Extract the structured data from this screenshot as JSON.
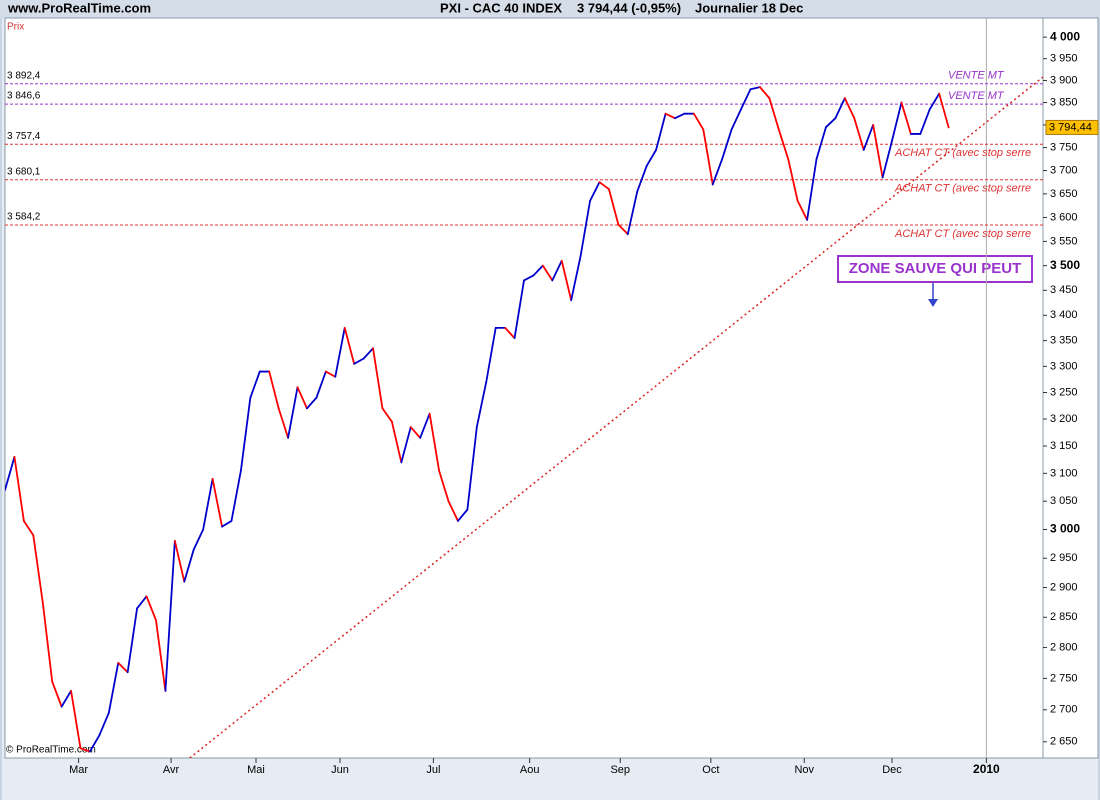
{
  "header": {
    "site": "www.ProRealTime.com",
    "instrument": "PXI - CAC 40 INDEX",
    "quote": "3 794,44 (-0,95%)",
    "period": "Journalier  18 Dec"
  },
  "chart_data": {
    "type": "line",
    "y_axis_title": "Prix",
    "copyright": "© ProRealTime.com",
    "log_scale": true,
    "grid": false,
    "up_color": "#0000cc",
    "down_color": "#ff0000",
    "xlim": [
      0,
      110
    ],
    "xticks": [
      {
        "value": 7.8,
        "label": "Mar"
      },
      {
        "value": 17.6,
        "label": "Avr"
      },
      {
        "value": 26.6,
        "label": "Mai"
      },
      {
        "value": 35.5,
        "label": "Jun"
      },
      {
        "value": 45.4,
        "label": "Jul"
      },
      {
        "value": 55.6,
        "label": "Aou"
      },
      {
        "value": 65.2,
        "label": "Sep"
      },
      {
        "value": 74.8,
        "label": "Oct"
      },
      {
        "value": 84.7,
        "label": "Nov"
      },
      {
        "value": 94.0,
        "label": "Dec"
      },
      {
        "value": 104.0,
        "label": "2010"
      }
    ],
    "ylim": [
      2625,
      4045
    ],
    "yticks": [
      {
        "value": 2650,
        "label": "2 650"
      },
      {
        "value": 2700,
        "label": "2 700"
      },
      {
        "value": 2750,
        "label": "2 750"
      },
      {
        "value": 2800,
        "label": "2 800"
      },
      {
        "value": 2850,
        "label": "2 850"
      },
      {
        "value": 2900,
        "label": "2 900"
      },
      {
        "value": 2950,
        "label": "2 950"
      },
      {
        "value": 3000,
        "label": "3 000"
      },
      {
        "value": 3050,
        "label": "3 050"
      },
      {
        "value": 3100,
        "label": "3 100"
      },
      {
        "value": 3150,
        "label": "3 150"
      },
      {
        "value": 3200,
        "label": "3 200"
      },
      {
        "value": 3250,
        "label": "3 250"
      },
      {
        "value": 3300,
        "label": "3 300"
      },
      {
        "value": 3350,
        "label": "3 350"
      },
      {
        "value": 3400,
        "label": "3 400"
      },
      {
        "value": 3450,
        "label": "3 450"
      },
      {
        "value": 3500,
        "label": "3 500"
      },
      {
        "value": 3550,
        "label": "3 550"
      },
      {
        "value": 3600,
        "label": "3 600"
      },
      {
        "value": 3650,
        "label": "3 650"
      },
      {
        "value": 3700,
        "label": "3 700"
      },
      {
        "value": 3750,
        "label": "3 750"
      },
      {
        "value": 3800,
        "label": "3 800"
      },
      {
        "value": 3850,
        "label": "3 850"
      },
      {
        "value": 3900,
        "label": "3 900"
      },
      {
        "value": 3950,
        "label": "3 950"
      },
      {
        "value": 4000,
        "label": "4 000"
      }
    ],
    "series": [
      {
        "name": "CAC 40",
        "values": [
          3070,
          3130,
          3015,
          2990,
          2875,
          2745,
          2705,
          2730,
          2640,
          2635,
          2660,
          2695,
          2775,
          2760,
          2865,
          2885,
          2845,
          2730,
          2980,
          2910,
          2965,
          3000,
          3090,
          3005,
          3015,
          3105,
          3240,
          3290,
          3290,
          3220,
          3165,
          3260,
          3220,
          3240,
          3290,
          3280,
          3375,
          3305,
          3315,
          3335,
          3220,
          3195,
          3120,
          3185,
          3165,
          3210,
          3105,
          3050,
          3015,
          3035,
          3185,
          3270,
          3375,
          3375,
          3355,
          3470,
          3480,
          3500,
          3470,
          3510,
          3430,
          3520,
          3635,
          3675,
          3660,
          3585,
          3565,
          3655,
          3710,
          3745,
          3825,
          3815,
          3825,
          3825,
          3790,
          3670,
          3725,
          3790,
          3835,
          3880,
          3885,
          3860,
          3790,
          3725,
          3635,
          3595,
          3725,
          3795,
          3815,
          3860,
          3815,
          3745,
          3800,
          3685,
          3765,
          3850,
          3780,
          3780,
          3835,
          3870,
          3794.44
        ]
      }
    ],
    "last_price_label": "3 794,44",
    "levels": [
      {
        "value": 3892.4,
        "label": "3 892,4",
        "text": "VENTE MT",
        "color": "#9933cc",
        "text_side": "above"
      },
      {
        "value": 3846.6,
        "label": "3 846,6",
        "text": "VENTE MT",
        "color": "#9933cc",
        "text_side": "above"
      },
      {
        "value": 3757.4,
        "label": "3 757,4",
        "text": "ACHAT CT (avec stop serre",
        "color": "#dd3333",
        "text_side": "below"
      },
      {
        "value": 3680.1,
        "label": "3 680,1",
        "text": "ACHAT CT (avec stop serre",
        "color": "#dd3333",
        "text_side": "below"
      },
      {
        "value": 3584.2,
        "label": "3 584,2",
        "text": "ACHAT CT (avec stop serre",
        "color": "#dd3333",
        "text_side": "below"
      }
    ],
    "trendline": {
      "x": [
        48.4,
        110
      ],
      "values": [
        2980,
        3908
      ],
      "color": "#dd2222"
    },
    "callout": "ZONE SAUVE QUI PEUT"
  }
}
